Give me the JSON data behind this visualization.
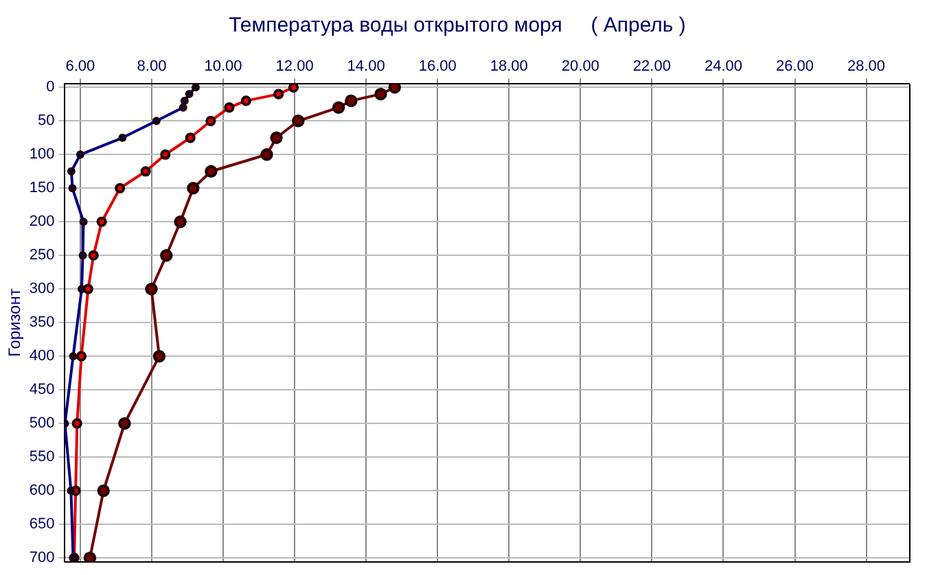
{
  "chart_data": {
    "type": "line",
    "title": "Температура воды открытого моря     ( Апрель )",
    "ylabel": "Горизонт",
    "xlim": [
      5.55,
      29.2
    ],
    "ylim": [
      705,
      -5
    ],
    "xticks": [
      {
        "value": 6,
        "label": "6.00"
      },
      {
        "value": 8,
        "label": "8.00"
      },
      {
        "value": 10,
        "label": "10.00"
      },
      {
        "value": 12,
        "label": "12.00"
      },
      {
        "value": 14,
        "label": "14.00"
      },
      {
        "value": 16,
        "label": "16.00"
      },
      {
        "value": 18,
        "label": "18.00"
      },
      {
        "value": 20,
        "label": "20.00"
      },
      {
        "value": 22,
        "label": "22.00"
      },
      {
        "value": 24,
        "label": "24.00"
      },
      {
        "value": 26,
        "label": "26.00"
      },
      {
        "value": 28,
        "label": "28.00"
      }
    ],
    "yticks": [
      0,
      50,
      100,
      150,
      200,
      250,
      300,
      350,
      400,
      450,
      500,
      550,
      600,
      650,
      700
    ],
    "grid": true,
    "legend": false,
    "marker": "circle",
    "line_style": "solid",
    "series": [
      {
        "color": "#000080",
        "x": [
          9.23,
          9.05,
          8.92,
          8.88,
          8.13,
          7.18,
          6.0,
          5.75,
          5.78,
          6.09,
          6.07,
          6.04,
          5.8,
          5.57,
          5.74,
          5.8
        ],
        "values": [
          0,
          10,
          20,
          30,
          50,
          75,
          100,
          125,
          150,
          200,
          250,
          300,
          400,
          500,
          600,
          700
        ]
      },
      {
        "color": "#e00000",
        "x": [
          11.97,
          11.55,
          10.64,
          10.17,
          9.65,
          9.08,
          8.38,
          7.83,
          7.11,
          6.6,
          6.37,
          6.22,
          6.03,
          5.91,
          5.87,
          5.83
        ],
        "values": [
          0,
          10,
          20,
          30,
          50,
          75,
          100,
          125,
          150,
          200,
          250,
          300,
          400,
          500,
          600,
          700
        ]
      },
      {
        "color": "#700000",
        "x": [
          14.8,
          14.41,
          13.58,
          13.23,
          12.1,
          11.49,
          11.22,
          9.66,
          9.16,
          8.8,
          8.41,
          7.99,
          8.21,
          7.24,
          6.65,
          6.27
        ],
        "values": [
          0,
          10,
          20,
          30,
          50,
          75,
          100,
          125,
          150,
          200,
          250,
          300,
          400,
          500,
          600,
          700
        ]
      }
    ]
  }
}
